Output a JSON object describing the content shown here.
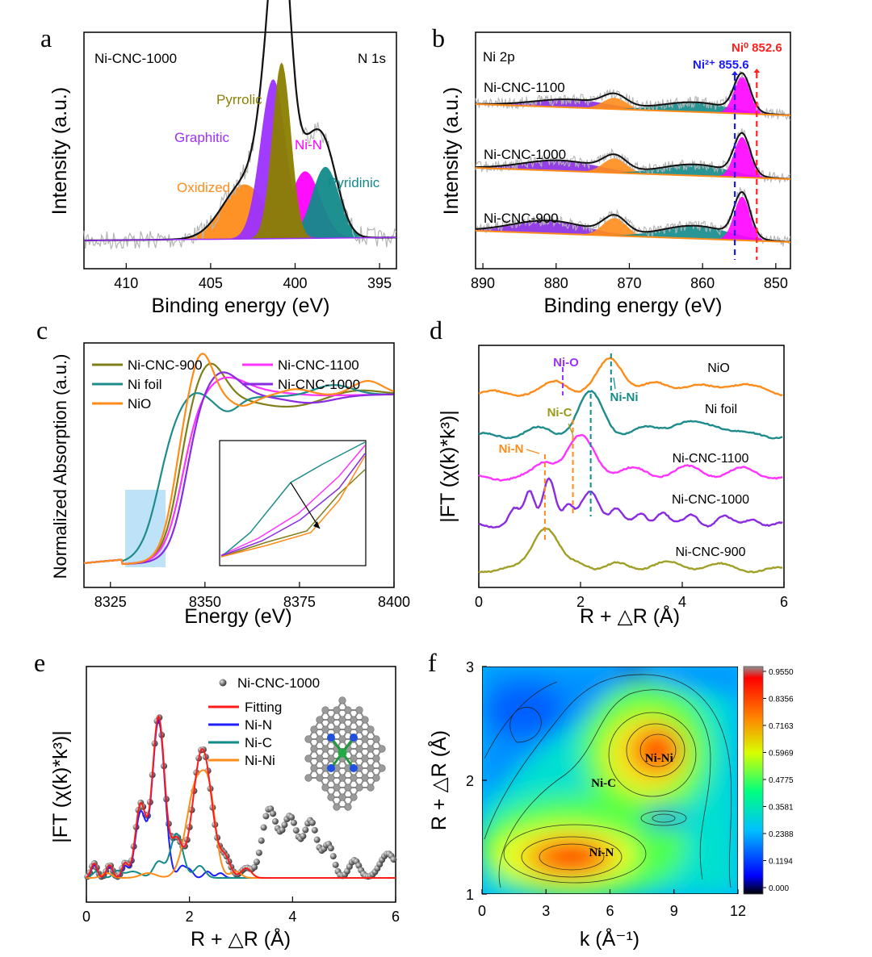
{
  "panels": {
    "a": "a",
    "b": "b",
    "c": "c",
    "d": "d",
    "e": "e",
    "f": "f"
  },
  "chart_data": [
    {
      "id": "a",
      "type": "line",
      "xlabel": "Binding energy (eV)",
      "ylabel": "Intensity (a.u.)",
      "x_range": [
        412.5,
        394
      ],
      "x_ticks": [
        "410",
        "405",
        "400",
        "395"
      ],
      "text": {
        "sample": "Ni-CNC-1000",
        "region": "N 1s"
      },
      "peaks": [
        {
          "name": "Oxidized",
          "center": 403.0,
          "height": 0.13,
          "width": 1.3,
          "color": "#ff8c1a"
        },
        {
          "name": "Graphitic",
          "center": 401.3,
          "height": 0.38,
          "width": 0.75,
          "color": "#9b30ff"
        },
        {
          "name": "Pyrrolic",
          "center": 400.8,
          "height": 0.42,
          "width": 0.55,
          "color": "#8b8000"
        },
        {
          "name": "Ni-N",
          "center": 399.4,
          "height": 0.16,
          "width": 0.9,
          "color": "#ff00ff"
        },
        {
          "name": "Pyridinic",
          "center": 398.2,
          "height": 0.17,
          "width": 0.8,
          "color": "#138a8a"
        }
      ]
    },
    {
      "id": "b",
      "type": "line",
      "xlabel": "Binding energy (eV)",
      "ylabel": "Intensity (a.u.)",
      "x_range": [
        891,
        848
      ],
      "x_ticks": [
        "890",
        "880",
        "870",
        "860",
        "850"
      ],
      "text": {
        "region": "Ni 2p",
        "ni2_label": "Ni²⁺ 855.6",
        "ni0_label": "Ni⁰ 852.6"
      },
      "reference_lines": [
        {
          "name": "Ni2+",
          "x": 855.6,
          "color": "#1a1aff"
        },
        {
          "name": "Ni0",
          "x": 852.6,
          "color": "#ff2020"
        }
      ],
      "series": [
        {
          "name": "Ni-CNC-1100"
        },
        {
          "name": "Ni-CNC-1000"
        },
        {
          "name": "Ni-CNC-900"
        }
      ]
    },
    {
      "id": "c",
      "type": "line",
      "xlabel": "Energy (eV)",
      "ylabel": "Normalized Absorption (a.u.)",
      "x_range": [
        8318,
        8400
      ],
      "x_ticks": [
        "8325",
        "8350",
        "8375",
        "8400"
      ],
      "series": [
        {
          "name": "Ni-CNC-900",
          "color": "#7f7f1a"
        },
        {
          "name": "Ni-CNC-1100",
          "color": "#ff33ff"
        },
        {
          "name": "Ni foil",
          "color": "#1f8c8c"
        },
        {
          "name": "Ni-CNC-1000",
          "color": "#8a2be2"
        },
        {
          "name": "NiO",
          "color": "#ff8c1a"
        }
      ]
    },
    {
      "id": "d",
      "type": "line",
      "xlabel": "R + △R (Å)",
      "ylabel": "|FT (χ(k)*k³)|",
      "x_range": [
        0,
        6
      ],
      "x_ticks": [
        "0",
        "2",
        "4",
        "6"
      ],
      "annotations": [
        {
          "text": "Ni-O",
          "x": 1.65,
          "color": "#9b30ff"
        },
        {
          "text": "Ni-Ni",
          "x": 2.6,
          "color": "#138a8a"
        },
        {
          "text": "Ni-C",
          "x": 1.85,
          "color": "#9a9a1a"
        },
        {
          "text": "Ni-N",
          "x": 1.3,
          "color": "#ff8c1a"
        }
      ],
      "series": [
        {
          "name": "NiO",
          "color": "#ff8c1a"
        },
        {
          "name": "Ni foil",
          "color": "#1f8c8c"
        },
        {
          "name": "Ni-CNC-1100",
          "color": "#ff33ff"
        },
        {
          "name": "Ni-CNC-1000",
          "color": "#8a2be2"
        },
        {
          "name": "Ni-CNC-900",
          "color": "#a0a028"
        }
      ]
    },
    {
      "id": "e",
      "type": "line",
      "xlabel": "R + △R (Å)",
      "ylabel": "|FT (χ(k)*k³)|",
      "x_range": [
        0,
        6
      ],
      "x_ticks": [
        "0",
        "2",
        "4",
        "6"
      ],
      "series": [
        {
          "name": "Ni-CNC-1000",
          "color": "#555555"
        },
        {
          "name": "Fitting",
          "color": "#ff1a1a"
        },
        {
          "name": "Ni-N",
          "color": "#1f1fff"
        },
        {
          "name": "Ni-C",
          "color": "#138a8a"
        },
        {
          "name": "Ni-Ni",
          "color": "#ff8c1a"
        }
      ]
    },
    {
      "id": "f",
      "type": "heatmap",
      "xlabel": "k (Å⁻¹)",
      "ylabel": "R + △R (Å)",
      "x_range": [
        0,
        12
      ],
      "y_range": [
        1,
        3
      ],
      "x_ticks": [
        "0",
        "3",
        "6",
        "9",
        "12"
      ],
      "y_ticks": [
        "1",
        "2",
        "3"
      ],
      "labels": [
        {
          "text": "Ni-Ni",
          "k": 8.3,
          "r": 2.2
        },
        {
          "text": "Ni-C",
          "k": 5.7,
          "r": 1.98
        },
        {
          "text": "Ni-N",
          "k": 5.6,
          "r": 1.37
        }
      ],
      "colorbar": [
        "0.9550",
        "0.8356",
        "0.7163",
        "0.5969",
        "0.4775",
        "0.3581",
        "0.2388",
        "0.1194",
        "0.000"
      ]
    }
  ]
}
